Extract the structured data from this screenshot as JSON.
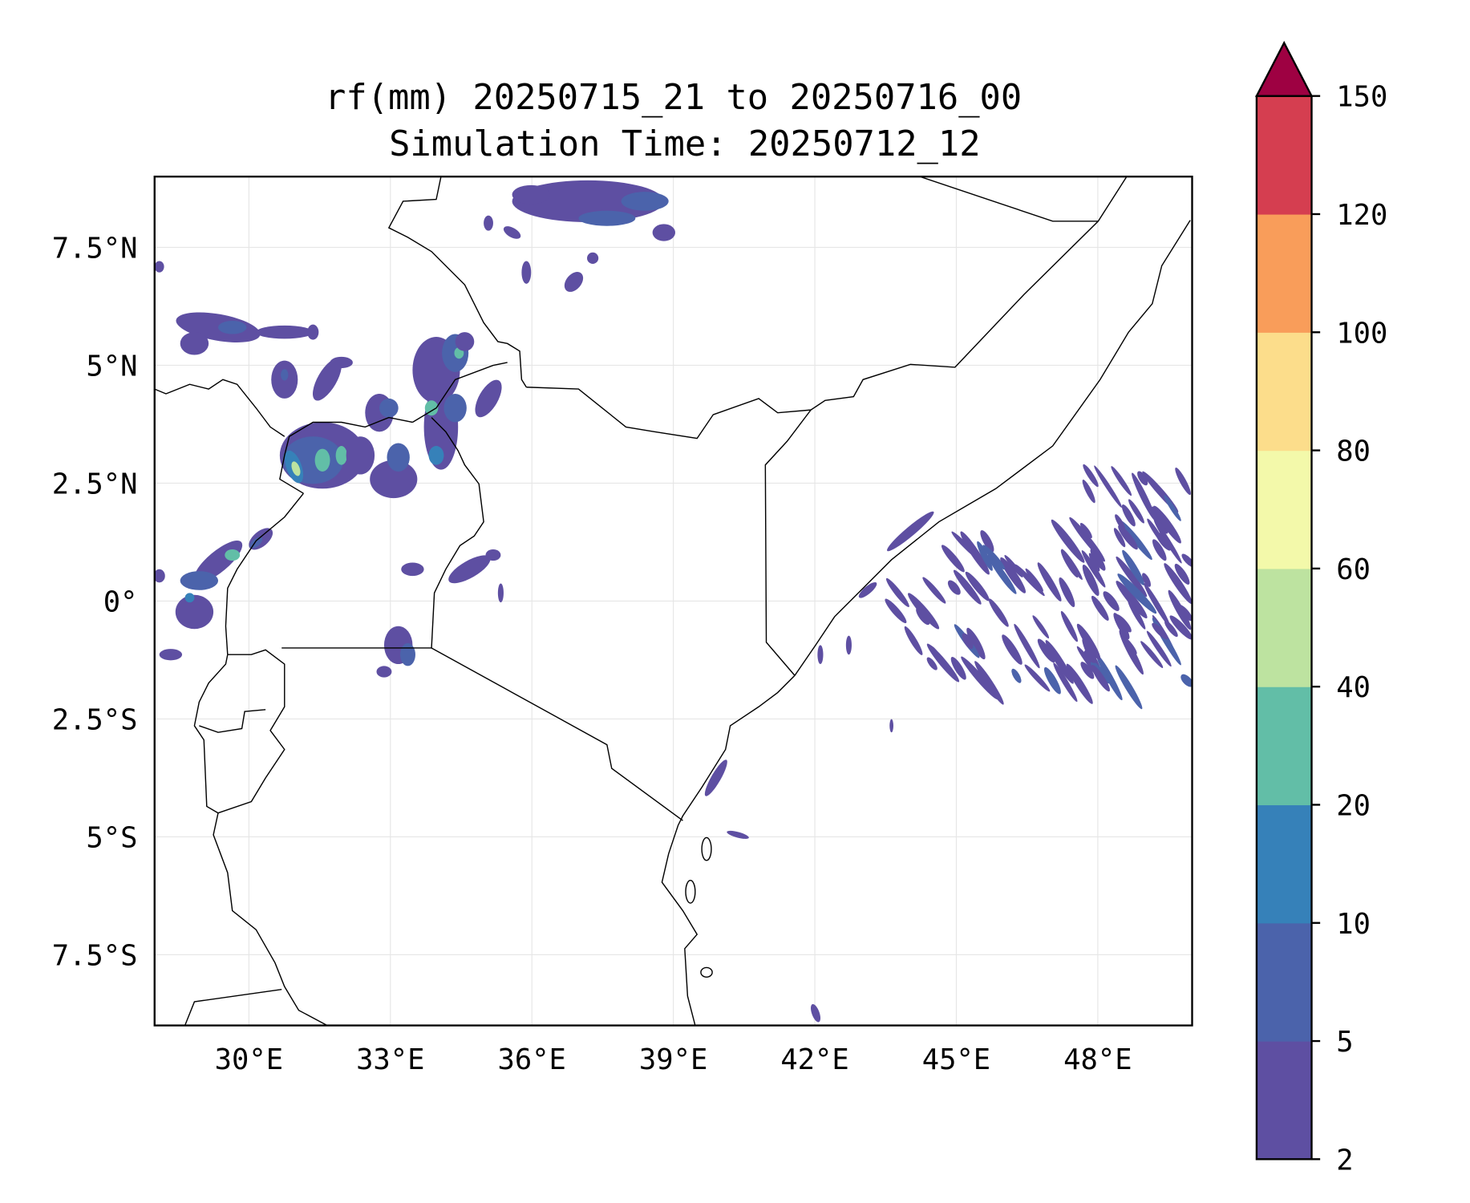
{
  "chart_data": {
    "type": "heatmap",
    "title_line1": "rf(mm) 20250715_21 to 20250716_00",
    "title_line2": "Simulation Time: 20250712_12",
    "xlabel": "",
    "ylabel": "",
    "xlim": [
      28,
      50
    ],
    "ylim": [
      -9,
      9
    ],
    "grid": true,
    "x_ticks": [
      30,
      33,
      36,
      39,
      42,
      45,
      48
    ],
    "x_tick_labels": [
      "30°E",
      "33°E",
      "36°E",
      "39°E",
      "42°E",
      "45°E",
      "48°E"
    ],
    "y_ticks": [
      7.5,
      5,
      2.5,
      0,
      -2.5,
      -5,
      -7.5
    ],
    "y_tick_labels": [
      "7.5°N",
      "5°N",
      "2.5°N",
      "0°",
      "2.5°S",
      "5°S",
      "7.5°S"
    ],
    "colorbar": {
      "levels": [
        2,
        5,
        10,
        20,
        40,
        60,
        80,
        100,
        120,
        150
      ],
      "level_labels": [
        "2",
        "5",
        "10",
        "20",
        "40",
        "60",
        "80",
        "100",
        "120",
        "150"
      ],
      "colors": [
        "#5e4fa2",
        "#4b63ab",
        "#3681b9",
        "#62bea7",
        "#bde3a0",
        "#f3f9aa",
        "#fcdd8b",
        "#f99d5a",
        "#d53e50"
      ],
      "extend_max_color": "#9e0142",
      "extend": "max",
      "placement": "right"
    }
  }
}
